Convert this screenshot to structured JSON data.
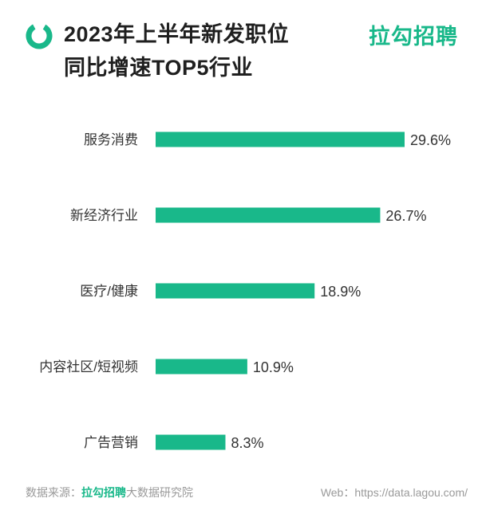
{
  "header": {
    "title_line1": "2023年上半年新发职位",
    "title_line2": "同比增速TOP5行业",
    "brand": "拉勾招聘"
  },
  "footer": {
    "source_prefix": "数据来源：",
    "source_brand": "拉勾招聘",
    "source_suffix": "大数据研究院",
    "web_label": "Web：",
    "web_url": "https://data.lagou.com/"
  },
  "colors": {
    "bar": "#19b88a",
    "logo": "#19b88a"
  },
  "chart_data": {
    "type": "bar",
    "orientation": "horizontal",
    "categories": [
      "服务消费",
      "新经济行业",
      "医疗/健康",
      "内容社区/短视频",
      "广告营销"
    ],
    "values": [
      29.6,
      26.7,
      18.9,
      10.9,
      8.3
    ],
    "value_labels": [
      "29.6%",
      "26.7%",
      "18.9%",
      "10.9%",
      "8.3%"
    ],
    "title": "",
    "xlabel": "",
    "ylabel": "",
    "xlim": [
      0,
      29.6
    ],
    "grid": false
  }
}
